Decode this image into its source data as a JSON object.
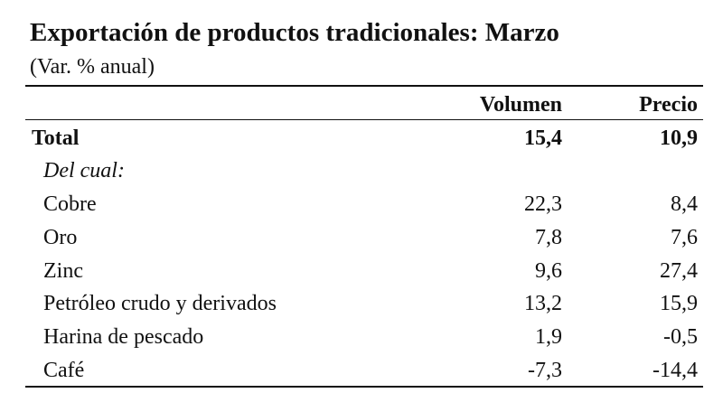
{
  "header": {
    "title": "Exportación de productos tradicionales: Marzo",
    "subtitle": "(Var. % anual)"
  },
  "table": {
    "columns": [
      "Volumen",
      "Precio"
    ],
    "total": {
      "label": "Total",
      "values": [
        "15,4",
        "10,9"
      ]
    },
    "subheading": "Del cual:",
    "rows": [
      [
        "Cobre",
        "22,3",
        "8,4"
      ],
      [
        "Oro",
        "7,8",
        "7,6"
      ],
      [
        "Zinc",
        "9,6",
        "27,4"
      ],
      [
        "Petróleo crudo y derivados",
        "13,2",
        "15,9"
      ],
      [
        "Harina de pescado",
        "1,9",
        "-0,5"
      ],
      [
        "Café",
        "-7,3",
        "-14,4"
      ]
    ]
  }
}
